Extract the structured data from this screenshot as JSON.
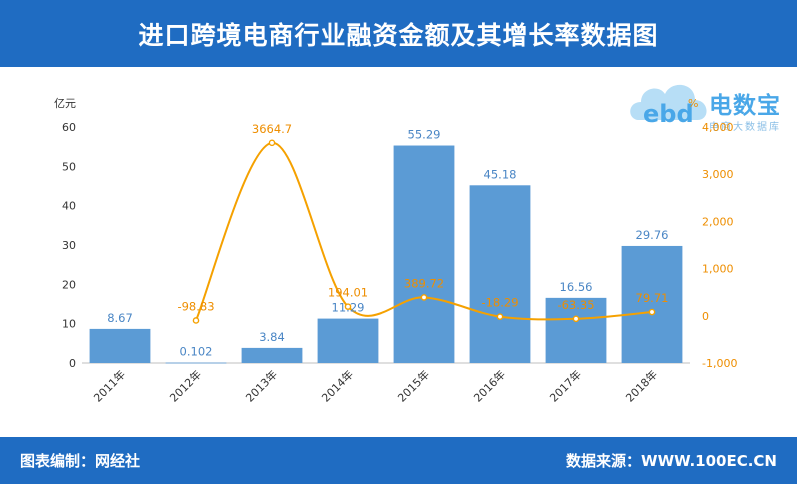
{
  "header": {
    "title": "进口跨境电商行业融资金额及其增长率数据图"
  },
  "footer": {
    "left": "图表编制：网经社",
    "right": "数据来源：WWW.100EC.CN"
  },
  "logo": {
    "brand": "电数宝",
    "tagline": "电商大数据库",
    "mark": "ebd",
    "colors": {
      "cloud": "#7cc4ef",
      "text": "#49a7e8"
    }
  },
  "chart_data": {
    "type": "bar+line",
    "categories": [
      "2011年",
      "2012年",
      "2013年",
      "2014年",
      "2015年",
      "2016年",
      "2017年",
      "2018年"
    ],
    "series": [
      {
        "type": "bar",
        "axis": "left",
        "values": [
          8.67,
          0.102,
          3.84,
          11.29,
          55.29,
          45.18,
          16.56,
          29.76
        ],
        "labels": [
          "8.67",
          "0.102",
          "3.84",
          "11.29",
          "55.29",
          "45.18",
          "16.56",
          "29.76"
        ],
        "color": "#5b9bd5"
      },
      {
        "type": "line",
        "axis": "right",
        "values": [
          null,
          -98.83,
          3664.7,
          194.01,
          389.72,
          -18.29,
          -63.35,
          79.71
        ],
        "labels": [
          "",
          "-98.83",
          "3664.7",
          "194.01",
          "389.72",
          "-18.29",
          "-63.35",
          "79.71"
        ],
        "color": "#f5a100"
      }
    ],
    "yleft": {
      "unit": "亿元",
      "ylim": [
        0,
        60
      ],
      "ticks": [
        "0",
        "10",
        "20",
        "30",
        "40",
        "50",
        "60"
      ],
      "tick_values": [
        0,
        10,
        20,
        30,
        40,
        50,
        60
      ]
    },
    "yright": {
      "unit": "%",
      "ylim": [
        -1000,
        4000
      ],
      "ticks": [
        "-1,000",
        "0",
        "1,000",
        "2,000",
        "3,000",
        "4,000"
      ],
      "tick_values": [
        -1000,
        0,
        1000,
        2000,
        3000,
        4000
      ]
    },
    "grid": false
  }
}
